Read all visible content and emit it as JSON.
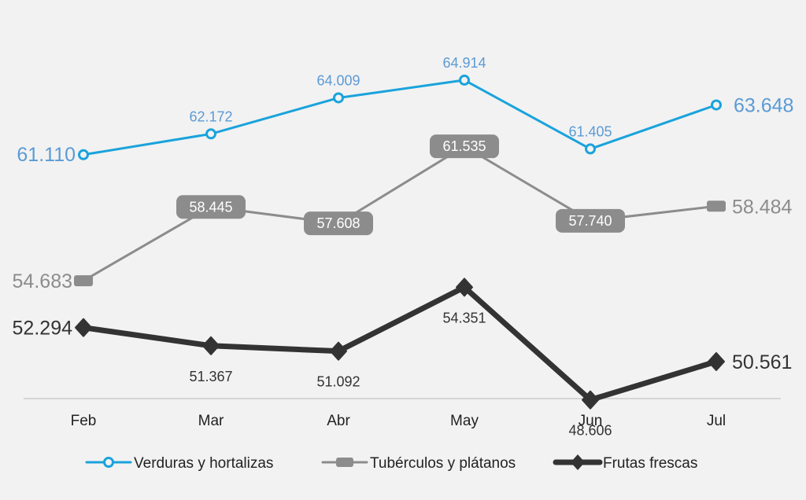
{
  "chart_data": {
    "type": "line",
    "categories": [
      "Feb",
      "Mar",
      "Abr",
      "May",
      "Jun",
      "Jul"
    ],
    "series": [
      {
        "name": "Verduras y hortalizas",
        "values": [
          61.11,
          62.172,
          64.009,
          64.914,
          61.405,
          63.648
        ],
        "labels": [
          "61.110",
          "62.172",
          "64.009",
          "64.914",
          "61.405",
          "63.648"
        ],
        "color": "#1aa3dc",
        "label_color": "#5b9bd5",
        "marker": "circle"
      },
      {
        "name": "Tubérculos y plátanos",
        "values": [
          54.683,
          58.445,
          57.608,
          61.535,
          57.74,
          58.484
        ],
        "labels": [
          "54.683",
          "58.445",
          "57.608",
          "61.535",
          "57.740",
          "58.484"
        ],
        "color": "#8c8c8c",
        "label_color": "#8c8c8c",
        "marker": "square"
      },
      {
        "name": "Frutas frescas",
        "values": [
          52.294,
          51.367,
          51.092,
          54.351,
          48.606,
          50.561
        ],
        "labels": [
          "52.294",
          "51.367",
          "51.092",
          "54.351",
          "48.606",
          "50.561"
        ],
        "color": "#333333",
        "label_color": "#333333",
        "marker": "diamond"
      }
    ],
    "xlabel": "",
    "ylabel": "",
    "ylim": [
      43.5,
      69.0
    ],
    "grid": false,
    "legend": "bottom"
  }
}
